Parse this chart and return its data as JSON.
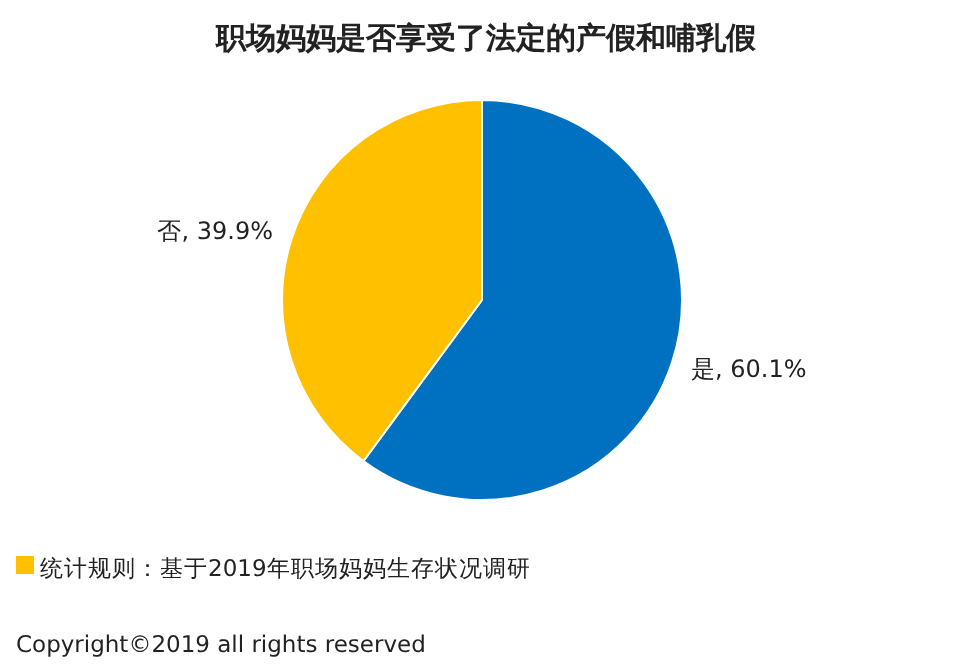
{
  "chart_data": {
    "type": "pie",
    "title": "职场妈妈是否享受了法定的产假和哺乳假",
    "categories": [
      "是",
      "否"
    ],
    "values": [
      60.1,
      39.9
    ],
    "value_labels": [
      "60.1%",
      "39.9%"
    ],
    "colors": [
      "#0070c0",
      "#ffc000"
    ],
    "annotations": [
      "统计规则：基于2019年职场妈妈生存状况调研",
      "Copyright©2019 all rights reserved"
    ]
  }
}
